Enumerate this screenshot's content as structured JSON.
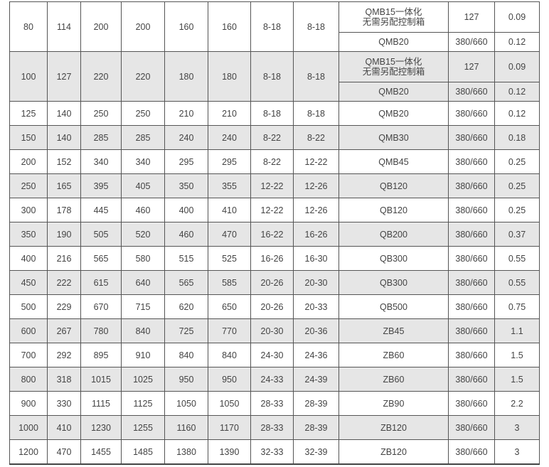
{
  "rows": [
    {
      "c": [
        "80",
        "114",
        "200",
        "200",
        "160",
        "160",
        "8-18",
        "8-18"
      ],
      "sub": [
        [
          "QMB15一体化\n无需另配控制箱",
          "127",
          "0.09"
        ],
        [
          "QMB20",
          "380/660",
          "0.12"
        ]
      ],
      "grey": false
    },
    {
      "c": [
        "100",
        "127",
        "220",
        "220",
        "180",
        "180",
        "8-18",
        "8-18"
      ],
      "sub": [
        [
          "QMB15一体化\n无需另配控制箱",
          "127",
          "0.09"
        ],
        [
          "QMB20",
          "380/660",
          "0.12"
        ]
      ],
      "grey": true
    },
    {
      "c": [
        "125",
        "140",
        "250",
        "250",
        "210",
        "210",
        "8-18",
        "8-18",
        "QMB20",
        "380/660",
        "0.12"
      ],
      "grey": false
    },
    {
      "c": [
        "150",
        "140",
        "285",
        "285",
        "240",
        "240",
        "8-22",
        "8-22",
        "QMB30",
        "380/660",
        "0.18"
      ],
      "grey": true
    },
    {
      "c": [
        "200",
        "152",
        "340",
        "340",
        "295",
        "295",
        "8-22",
        "12-22",
        "QMB45",
        "380/660",
        "0.25"
      ],
      "grey": false
    },
    {
      "c": [
        "250",
        "165",
        "395",
        "405",
        "350",
        "355",
        "12-22",
        "12-26",
        "QB120",
        "380/660",
        "0.25"
      ],
      "grey": true
    },
    {
      "c": [
        "300",
        "178",
        "445",
        "460",
        "400",
        "410",
        "12-22",
        "12-26",
        "QB120",
        "380/660",
        "0.25"
      ],
      "grey": false
    },
    {
      "c": [
        "350",
        "190",
        "505",
        "520",
        "460",
        "470",
        "16-22",
        "16-26",
        "QB200",
        "380/660",
        "0.37"
      ],
      "grey": true
    },
    {
      "c": [
        "400",
        "216",
        "565",
        "580",
        "515",
        "525",
        "16-26",
        "16-30",
        "QB300",
        "380/660",
        "0.55"
      ],
      "grey": false
    },
    {
      "c": [
        "450",
        "222",
        "615",
        "640",
        "565",
        "585",
        "20-26",
        "20-30",
        "QB300",
        "380/660",
        "0.55"
      ],
      "grey": true
    },
    {
      "c": [
        "500",
        "229",
        "670",
        "715",
        "620",
        "650",
        "20-26",
        "20-33",
        "QB500",
        "380/660",
        "0.75"
      ],
      "grey": false
    },
    {
      "c": [
        "600",
        "267",
        "780",
        "840",
        "725",
        "770",
        "20-30",
        "20-36",
        "ZB45",
        "380/660",
        "1.1"
      ],
      "grey": true
    },
    {
      "c": [
        "700",
        "292",
        "895",
        "910",
        "840",
        "840",
        "24-30",
        "24-36",
        "ZB60",
        "380/660",
        "1.5"
      ],
      "grey": false
    },
    {
      "c": [
        "800",
        "318",
        "1015",
        "1025",
        "950",
        "950",
        "24-33",
        "24-39",
        "ZB60",
        "380/660",
        "1.5"
      ],
      "grey": true
    },
    {
      "c": [
        "900",
        "330",
        "1115",
        "1125",
        "1050",
        "1050",
        "28-33",
        "28-39",
        "ZB90",
        "380/660",
        "2.2"
      ],
      "grey": false
    },
    {
      "c": [
        "1000",
        "410",
        "1230",
        "1255",
        "1160",
        "1170",
        "28-33",
        "28-39",
        "ZB120",
        "380/660",
        "3"
      ],
      "grey": true
    },
    {
      "c": [
        "1200",
        "470",
        "1455",
        "1485",
        "1380",
        "1390",
        "32-33",
        "32-39",
        "ZB120",
        "380/660",
        "3"
      ],
      "grey": false
    }
  ]
}
